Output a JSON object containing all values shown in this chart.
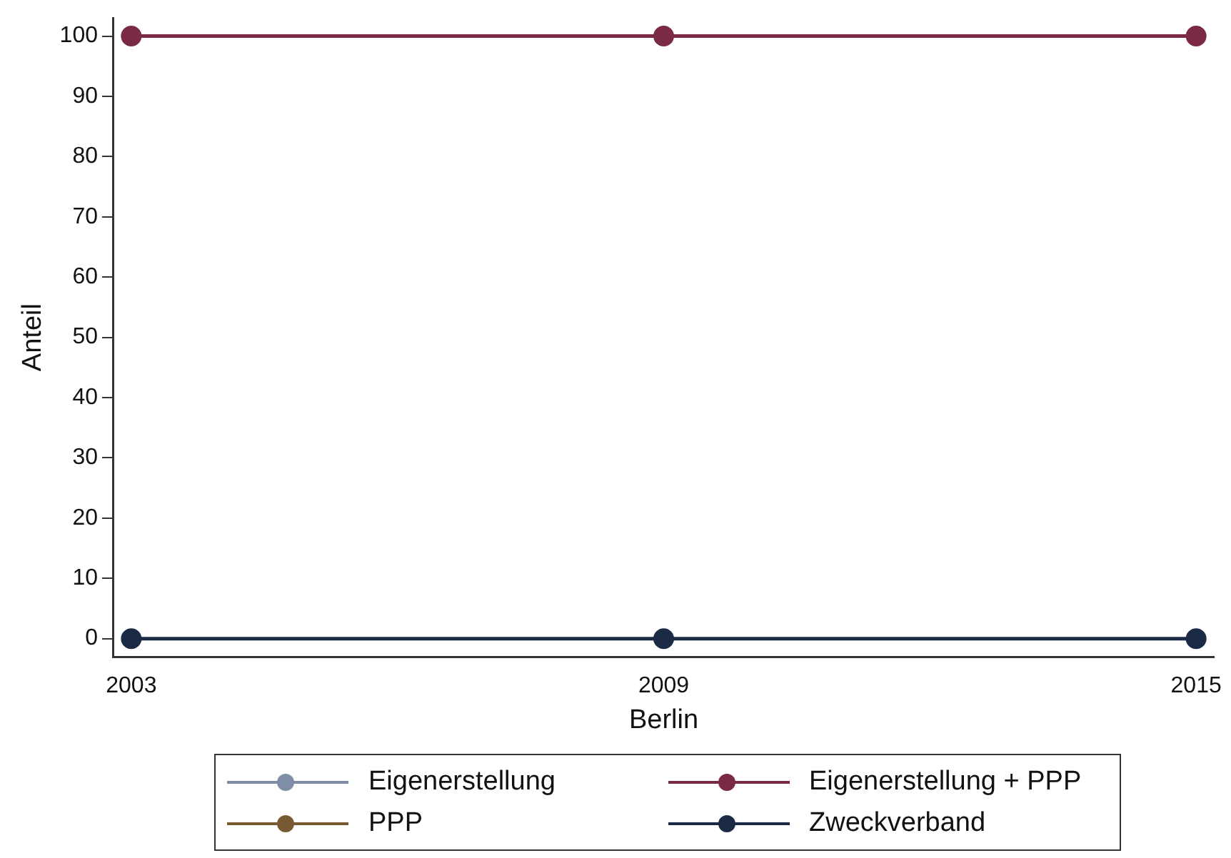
{
  "chart_data": {
    "type": "line",
    "xlabel": "Berlin",
    "ylabel": "Anteil",
    "x": [
      2003,
      2009,
      2015
    ],
    "series": [
      {
        "name": "Eigenerstellung",
        "color": "#7f8ea4",
        "values": [
          null,
          null,
          null
        ]
      },
      {
        "name": "Eigenerstellung + PPP",
        "color": "#7a2a45",
        "values": [
          100,
          100,
          100
        ]
      },
      {
        "name": "PPP",
        "color": "#7a5a32",
        "values": [
          null,
          null,
          null
        ]
      },
      {
        "name": "Zweckverband",
        "color": "#1b2a45",
        "values": [
          0,
          0,
          0
        ]
      }
    ],
    "xlim": [
      2002.8,
      2015.2
    ],
    "xticks": [
      2003,
      2009,
      2015
    ],
    "ylim": [
      -3,
      103
    ],
    "yticks": [
      0,
      10,
      20,
      30,
      40,
      50,
      60,
      70,
      80,
      90,
      100
    ],
    "grid": false,
    "legend": "bottom",
    "marker": "circle",
    "line_style": "solid"
  }
}
